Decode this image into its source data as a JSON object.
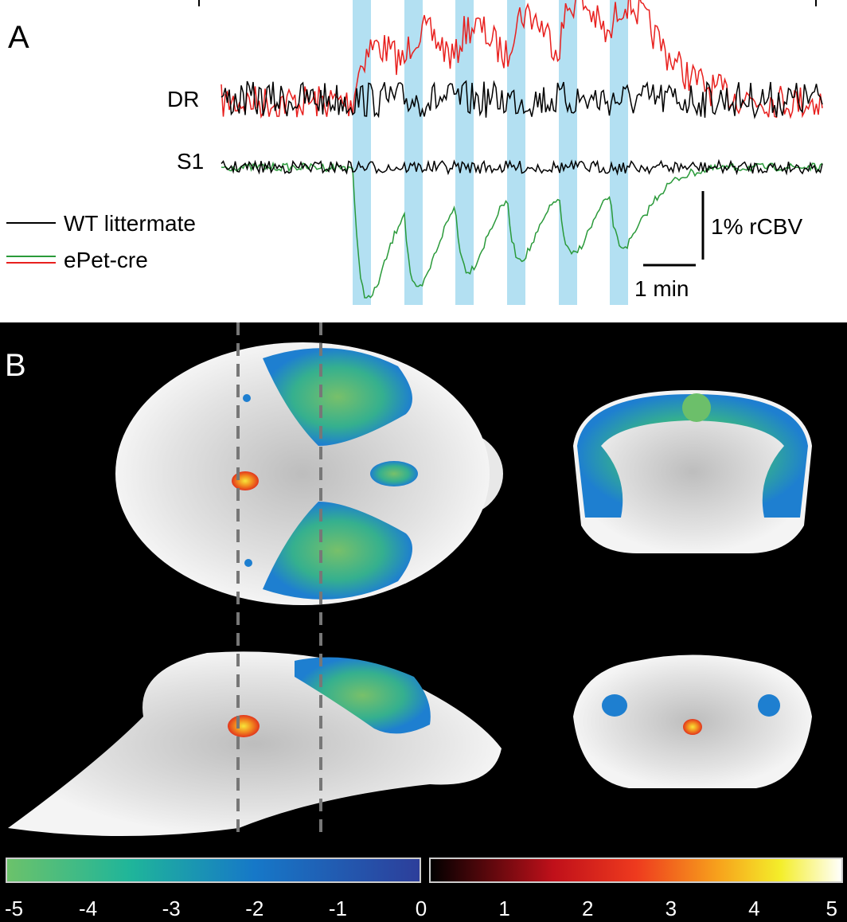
{
  "panel_a": {
    "label": "A",
    "traces": [
      "DR",
      "S1"
    ],
    "legend": [
      "WT littermate",
      "ePet-cre"
    ],
    "scale_bars": {
      "vertical": "1% rCBV",
      "horizontal": "1 min"
    }
  },
  "panel_b": {
    "label": "B",
    "colorbar_ticks": [
      -5,
      -4,
      -3,
      -2,
      -1,
      0,
      1,
      2,
      3,
      4,
      5
    ]
  }
}
